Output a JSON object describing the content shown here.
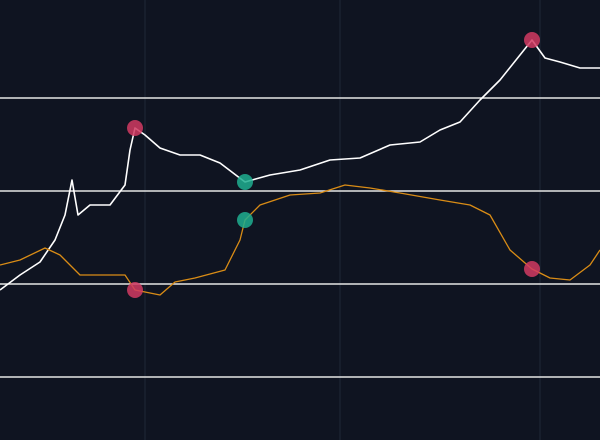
{
  "chart_data": {
    "type": "line",
    "xlim": [
      0,
      600
    ],
    "ylim": [
      0,
      440
    ],
    "xticks": [
      145,
      340,
      540
    ],
    "yticks": [
      63,
      156,
      249,
      342
    ],
    "background": "#0f1421",
    "grid_color": "#1f2737",
    "hline_color": "#e6e6e6",
    "series": [
      {
        "color": "#ffffff",
        "x": [
          0,
          20,
          40,
          55,
          65,
          72,
          78,
          90,
          110,
          125,
          130,
          135,
          145,
          160,
          180,
          200,
          220,
          245,
          270,
          300,
          330,
          360,
          390,
          420,
          440,
          460,
          480,
          500,
          520,
          532,
          545,
          560,
          580,
          600
        ],
        "values": [
          150,
          165,
          178,
          200,
          225,
          260,
          225,
          235,
          235,
          255,
          290,
          312,
          305,
          292,
          285,
          285,
          277,
          258,
          265,
          270,
          280,
          282,
          295,
          298,
          310,
          318,
          340,
          360,
          385,
          400,
          382,
          378,
          372,
          372
        ]
      },
      {
        "color": "#d98c16",
        "x": [
          0,
          20,
          45,
          60,
          80,
          110,
          125,
          135,
          160,
          175,
          195,
          225,
          240,
          245,
          260,
          290,
          320,
          345,
          370,
          400,
          440,
          470,
          490,
          510,
          532,
          550,
          570,
          590,
          600
        ],
        "values": [
          175,
          180,
          192,
          185,
          165,
          165,
          165,
          150,
          145,
          158,
          162,
          170,
          200,
          220,
          235,
          245,
          247,
          255,
          252,
          247,
          240,
          235,
          225,
          190,
          171,
          162,
          160,
          175,
          190
        ]
      }
    ],
    "markers": [
      {
        "x": 135,
        "y": 312,
        "color": "#d13a62"
      },
      {
        "x": 532,
        "y": 400,
        "color": "#d13a62"
      },
      {
        "x": 135,
        "y": 150,
        "color": "#d13a62"
      },
      {
        "x": 532,
        "y": 171,
        "color": "#d13a62"
      },
      {
        "x": 245,
        "y": 258,
        "color": "#1fae8f"
      },
      {
        "x": 245,
        "y": 220,
        "color": "#1fae8f"
      }
    ]
  }
}
